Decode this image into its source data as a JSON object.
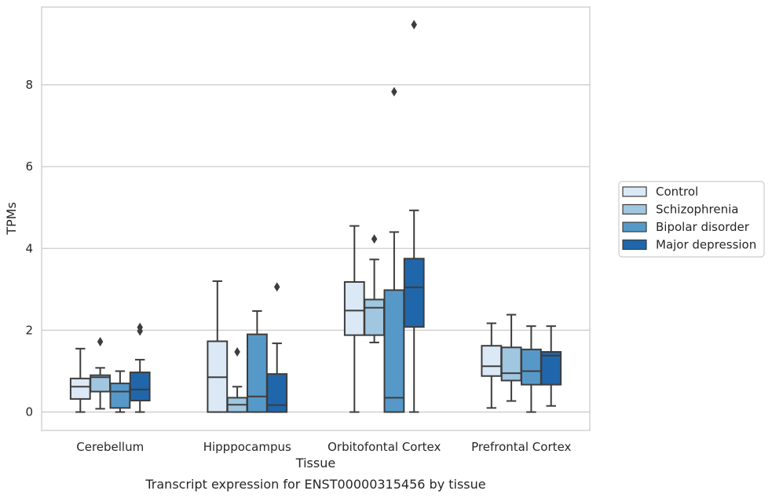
{
  "chart_data": {
    "type": "box",
    "title": "",
    "caption": "Transcript expression for ENST00000315456 by tissue",
    "xlabel": "Tissue",
    "ylabel": "TPMs",
    "ylim": [
      -0.45,
      9.9
    ],
    "yticks": [
      0,
      2,
      4,
      6,
      8
    ],
    "grid": "horizontal",
    "legend_position": "right",
    "categories": [
      "Cerebellum",
      "Hipppocampus",
      "Orbitofontal Cortex",
      "Prefrontal Cortex"
    ],
    "series": [
      {
        "name": "Control",
        "color": "#dbe8f5",
        "boxes": [
          {
            "whislo": 0.0,
            "q1": 0.32,
            "med": 0.62,
            "q3": 0.82,
            "whishi": 1.55,
            "fliers": []
          },
          {
            "whislo": 0.0,
            "q1": 0.0,
            "med": 0.85,
            "q3": 1.73,
            "whishi": 3.2,
            "fliers": []
          },
          {
            "whislo": 0.0,
            "q1": 1.88,
            "med": 2.48,
            "q3": 3.18,
            "whishi": 4.55,
            "fliers": []
          },
          {
            "whislo": 0.1,
            "q1": 0.88,
            "med": 1.12,
            "q3": 1.62,
            "whishi": 2.17,
            "fliers": []
          }
        ]
      },
      {
        "name": "Schizophrenia",
        "color": "#a0c6e0",
        "boxes": [
          {
            "whislo": 0.08,
            "q1": 0.5,
            "med": 0.85,
            "q3": 0.9,
            "whishi": 1.08,
            "fliers": [
              1.72
            ]
          },
          {
            "whislo": 0.0,
            "q1": 0.0,
            "med": 0.18,
            "q3": 0.35,
            "whishi": 0.62,
            "fliers": [
              1.47
            ]
          },
          {
            "whislo": 1.7,
            "q1": 1.88,
            "med": 2.55,
            "q3": 2.75,
            "whishi": 3.73,
            "fliers": [
              4.23
            ]
          },
          {
            "whislo": 0.27,
            "q1": 0.77,
            "med": 0.95,
            "q3": 1.58,
            "whishi": 2.38,
            "fliers": []
          }
        ]
      },
      {
        "name": "Bipolar disorder",
        "color": "#5699c9",
        "boxes": [
          {
            "whislo": 0.0,
            "q1": 0.1,
            "med": 0.5,
            "q3": 0.7,
            "whishi": 1.0,
            "fliers": []
          },
          {
            "whislo": 0.0,
            "q1": 0.0,
            "med": 0.38,
            "q3": 1.9,
            "whishi": 2.47,
            "fliers": []
          },
          {
            "whislo": 0.0,
            "q1": 0.0,
            "med": 0.35,
            "q3": 2.98,
            "whishi": 4.4,
            "fliers": [
              7.83
            ]
          },
          {
            "whislo": 0.0,
            "q1": 0.67,
            "med": 1.0,
            "q3": 1.53,
            "whishi": 2.1,
            "fliers": []
          }
        ]
      },
      {
        "name": "Major depression",
        "color": "#2066ab",
        "boxes": [
          {
            "whislo": 0.0,
            "q1": 0.28,
            "med": 0.55,
            "q3": 0.97,
            "whishi": 1.28,
            "fliers": [
              1.98,
              2.07
            ]
          },
          {
            "whislo": 0.0,
            "q1": 0.0,
            "med": 0.17,
            "q3": 0.93,
            "whishi": 1.68,
            "fliers": [
              3.06
            ]
          },
          {
            "whislo": 0.0,
            "q1": 2.08,
            "med": 3.05,
            "q3": 3.75,
            "whishi": 4.93,
            "fliers": [
              9.47
            ]
          },
          {
            "whislo": 0.15,
            "q1": 0.67,
            "med": 1.38,
            "q3": 1.47,
            "whishi": 2.1,
            "fliers": []
          }
        ]
      }
    ]
  }
}
